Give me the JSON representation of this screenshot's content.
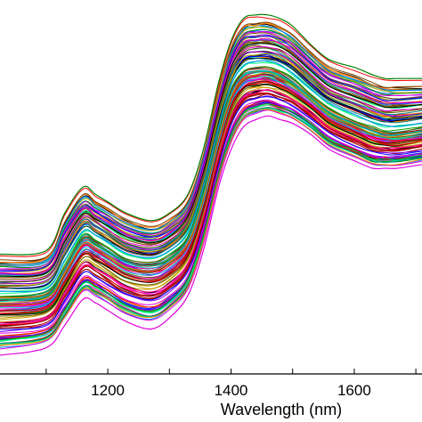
{
  "chart_data": {
    "type": "line",
    "title": "",
    "xlabel": "Wavelength (nm)",
    "ylabel": "",
    "xlim": [
      1025,
      1710
    ],
    "ylim": [
      0,
      1
    ],
    "x_ticks": [
      1200,
      1400,
      1600
    ],
    "x_tick_labels": [
      "1200",
      "1400",
      "1600"
    ],
    "grid": false,
    "legend": "none",
    "series_description": "NIR spectra, approx. 120 overlapping curves in many colors",
    "x": [
      1025,
      1100,
      1130,
      1160,
      1180,
      1200,
      1230,
      1270,
      1300,
      1330,
      1355,
      1380,
      1400,
      1420,
      1440,
      1460,
      1480,
      1500,
      1530,
      1560,
      1600,
      1630,
      1650,
      1670,
      1710
    ],
    "series": [
      {
        "values": [
          0.32,
          0.33,
          0.43,
          0.5,
          0.48,
          0.46,
          0.43,
          0.41,
          0.43,
          0.48,
          0.6,
          0.78,
          0.89,
          0.95,
          0.96,
          0.96,
          0.95,
          0.93,
          0.88,
          0.84,
          0.82,
          0.8,
          0.79,
          0.79,
          0.79
        ]
      },
      {
        "values": [
          0.2,
          0.21,
          0.28,
          0.36,
          0.35,
          0.33,
          0.3,
          0.29,
          0.31,
          0.36,
          0.48,
          0.64,
          0.75,
          0.8,
          0.81,
          0.81,
          0.8,
          0.78,
          0.74,
          0.7,
          0.67,
          0.65,
          0.64,
          0.64,
          0.65
        ]
      },
      {
        "values": [
          0.05,
          0.07,
          0.13,
          0.2,
          0.19,
          0.17,
          0.14,
          0.12,
          0.15,
          0.21,
          0.33,
          0.5,
          0.6,
          0.66,
          0.68,
          0.69,
          0.68,
          0.67,
          0.64,
          0.6,
          0.57,
          0.55,
          0.55,
          0.55,
          0.56
        ]
      }
    ],
    "palette": [
      "#ff0000",
      "#00a000",
      "#0000ff",
      "#00c8c8",
      "#e000e0",
      "#c8a000",
      "#000000",
      "#ff8000",
      "#8000ff",
      "#008080",
      "#a00000",
      "#00ff80",
      "#ff0080",
      "#606000",
      "#0080ff",
      "#804000"
    ]
  }
}
